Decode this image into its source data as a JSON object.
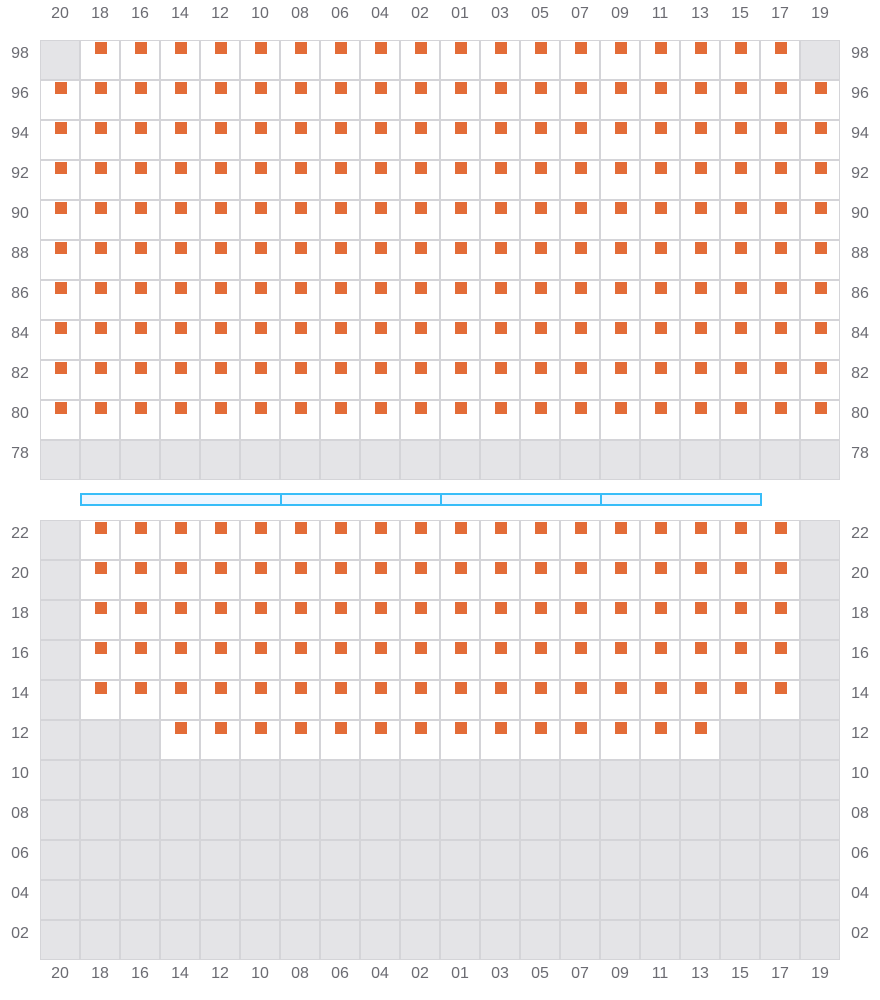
{
  "columns": [
    "20",
    "18",
    "16",
    "14",
    "12",
    "10",
    "08",
    "06",
    "04",
    "02",
    "01",
    "03",
    "05",
    "07",
    "09",
    "11",
    "13",
    "15",
    "17",
    "19"
  ],
  "colors": {
    "available": "#ffffff",
    "unavailable": "#e4e4e7",
    "marker": "#e36c37",
    "grid": "#d4d4d8",
    "divider": "#38bdf8"
  },
  "sections": [
    {
      "rows": [
        {
          "label": "98",
          "cells": "xoooooooooooooooooox"
        },
        {
          "label": "96",
          "cells": "oooooooooooooooooooo"
        },
        {
          "label": "94",
          "cells": "oooooooooooooooooooo"
        },
        {
          "label": "92",
          "cells": "oooooooooooooooooooo"
        },
        {
          "label": "90",
          "cells": "oooooooooooooooooooo"
        },
        {
          "label": "88",
          "cells": "oooooooooooooooooooo"
        },
        {
          "label": "86",
          "cells": "oooooooooooooooooooo"
        },
        {
          "label": "84",
          "cells": "oooooooooooooooooooo"
        },
        {
          "label": "82",
          "cells": "oooooooooooooooooooo"
        },
        {
          "label": "80",
          "cells": "oooooooooooooooooooo"
        },
        {
          "label": "78",
          "cells": "xxxxxxxxxxxxxxxxxxxx"
        }
      ]
    },
    {
      "rows": [
        {
          "label": "22",
          "cells": "xoooooooooooooooooox"
        },
        {
          "label": "20",
          "cells": "xoooooooooooooooooox"
        },
        {
          "label": "18",
          "cells": "xoooooooooooooooooox"
        },
        {
          "label": "16",
          "cells": "xoooooooooooooooooox"
        },
        {
          "label": "14",
          "cells": "xoooooooooooooooooox"
        },
        {
          "label": "12",
          "cells": "xxxooooooooooooooxxx"
        },
        {
          "label": "10",
          "cells": "xxxxxxxxxxxxxxxxxxxx"
        },
        {
          "label": "08",
          "cells": "xxxxxxxxxxxxxxxxxxxx"
        },
        {
          "label": "06",
          "cells": "xxxxxxxxxxxxxxxxxxxx"
        },
        {
          "label": "04",
          "cells": "xxxxxxxxxxxxxxxxxxxx"
        },
        {
          "label": "02",
          "cells": "xxxxxxxxxxxxxxxxxxxx"
        }
      ]
    }
  ],
  "divider_segments": [
    {
      "from": "18",
      "to": "08"
    },
    {
      "from": "08",
      "to": "01"
    },
    {
      "from": "01",
      "to": "09"
    },
    {
      "from": "09",
      "to": "17"
    }
  ]
}
